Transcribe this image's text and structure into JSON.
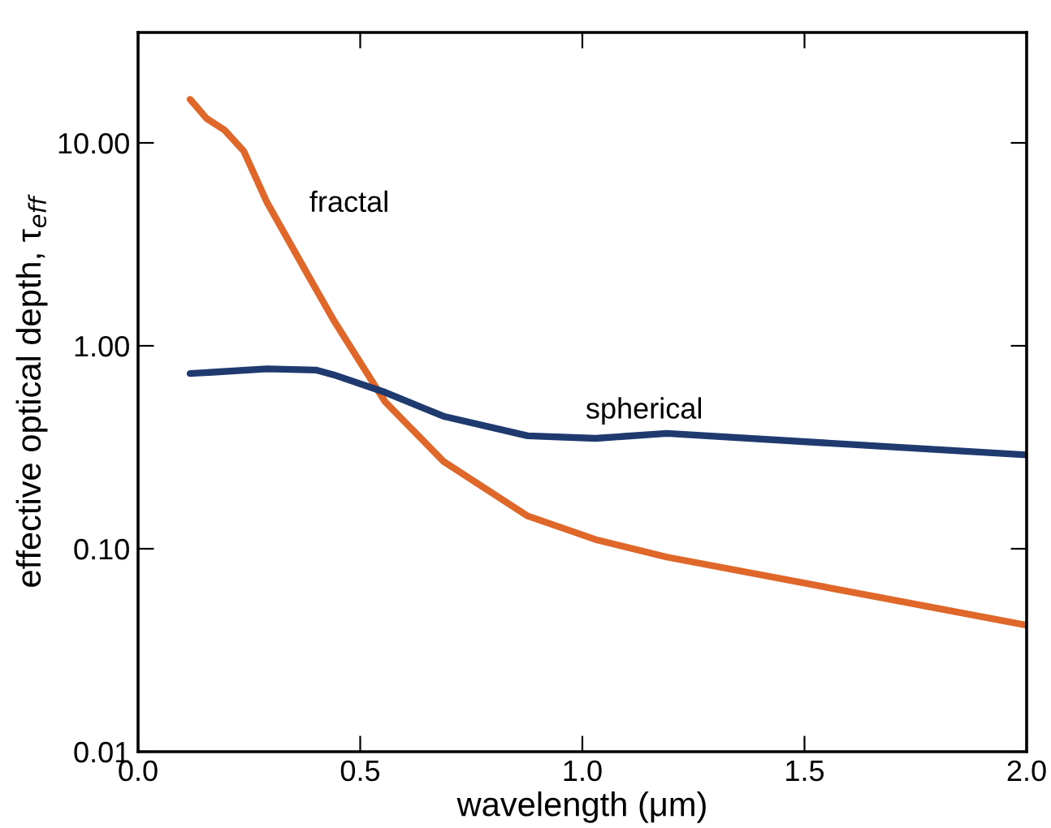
{
  "chart_data": {
    "type": "line",
    "xlabel": "wavelength (μm)",
    "ylabel": "effective optical depth, τ$_{eff}$",
    "log": "y",
    "xlim": [
      0.0,
      2.0
    ],
    "ylim": [
      0.01,
      35
    ],
    "xticks": [
      {
        "value": 0.0,
        "label": "0.0"
      },
      {
        "value": 0.5,
        "label": "0.5"
      },
      {
        "value": 1.0,
        "label": "1.0"
      },
      {
        "value": 1.5,
        "label": "1.5"
      },
      {
        "value": 2.0,
        "label": "2.0"
      }
    ],
    "yticks": [
      {
        "value": 0.01,
        "label": "0.01"
      },
      {
        "value": 0.1,
        "label": "0.10"
      },
      {
        "value": 1,
        "label": "1.00"
      },
      {
        "value": 10,
        "label": "10.00"
      }
    ],
    "grid": false,
    "legend": false,
    "series": [
      {
        "name": "fractal",
        "color": "#e0672a",
        "x": [
          0.117,
          0.154,
          0.194,
          0.238,
          0.29,
          0.384,
          0.44,
          0.556,
          0.687,
          0.877,
          1.03,
          1.19,
          2.0
        ],
        "values": [
          16.4,
          13.2,
          11.6,
          9.1,
          5.1,
          2.2,
          1.34,
          0.53,
          0.27,
          0.145,
          0.111,
          0.091,
          0.042
        ]
      },
      {
        "name": "spherical",
        "color": "#1f3a6e",
        "x": [
          0.117,
          0.29,
          0.4,
          0.44,
          0.556,
          0.687,
          0.877,
          1.03,
          1.19,
          2.0
        ],
        "values": [
          0.73,
          0.77,
          0.76,
          0.72,
          0.59,
          0.45,
          0.36,
          0.35,
          0.37,
          0.29
        ]
      }
    ]
  }
}
